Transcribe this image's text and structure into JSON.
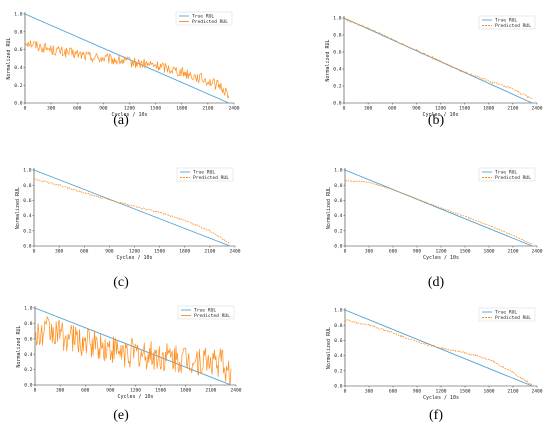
{
  "figure": {
    "colors": {
      "true_rul": "#4aa3d8",
      "predicted_rul": "#ff8c1a",
      "axis": "#333333"
    }
  },
  "chart_data": [
    {
      "panel": "(a)",
      "type": "line",
      "xlabel": "Cycles / 10s",
      "ylabel": "Normalized RUL",
      "xlim": [
        0,
        2400
      ],
      "ylim": [
        0,
        1
      ],
      "x_ticks": [
        "0",
        "300",
        "600",
        "900",
        "1200",
        "1500",
        "1800",
        "2100",
        "2400"
      ],
      "y_ticks": [
        "0.0",
        "0.2",
        "0.4",
        "0.6",
        "0.8",
        "1.0"
      ],
      "legend_position": "top-right",
      "pred_style": "solid",
      "series": [
        {
          "name": "True RUL",
          "x": [
            0,
            2340
          ],
          "values": [
            1.0,
            0.0
          ]
        },
        {
          "name": "Predicted RUL",
          "noise": 0.06,
          "x": [
            0,
            150,
            300,
            450,
            600,
            750,
            900,
            1050,
            1200,
            1350,
            1500,
            1650,
            1800,
            1950,
            2100,
            2250,
            2340
          ],
          "values": [
            0.7,
            0.64,
            0.6,
            0.57,
            0.55,
            0.52,
            0.5,
            0.48,
            0.46,
            0.44,
            0.42,
            0.39,
            0.35,
            0.3,
            0.25,
            0.18,
            0.1
          ]
        }
      ]
    },
    {
      "panel": "(b)",
      "type": "line",
      "xlabel": "Cycles / 10s",
      "ylabel": "Normalized RUL",
      "xlim": [
        0,
        2400
      ],
      "ylim": [
        0,
        1
      ],
      "x_ticks": [
        "0",
        "300",
        "600",
        "900",
        "1200",
        "1500",
        "1800",
        "2100",
        "2400"
      ],
      "y_ticks": [
        "0.0",
        "0.2",
        "0.4",
        "0.6",
        "0.8",
        "1.0"
      ],
      "legend_position": "top-right",
      "pred_style": "dashed",
      "series": [
        {
          "name": "True RUL",
          "x": [
            0,
            2340
          ],
          "values": [
            1.0,
            0.0
          ]
        },
        {
          "name": "Predicted RUL",
          "noise": 0.012,
          "x": [
            0,
            300,
            600,
            900,
            1200,
            1500,
            1800,
            2100,
            2340
          ],
          "values": [
            0.99,
            0.88,
            0.75,
            0.62,
            0.49,
            0.36,
            0.26,
            0.16,
            0.05
          ]
        }
      ]
    },
    {
      "panel": "(c)",
      "type": "line",
      "xlabel": "Cycles / 10s",
      "ylabel": "Normalized RUL",
      "xlim": [
        0,
        2400
      ],
      "ylim": [
        0,
        1
      ],
      "x_ticks": [
        "0",
        "300",
        "600",
        "900",
        "1200",
        "1500",
        "1800",
        "2100",
        "2400"
      ],
      "y_ticks": [
        "0.0",
        "0.2",
        "0.4",
        "0.6",
        "0.8",
        "1.0"
      ],
      "legend_position": "top-right",
      "pred_style": "dashed",
      "series": [
        {
          "name": "True RUL",
          "x": [
            0,
            2340
          ],
          "values": [
            1.0,
            0.0
          ]
        },
        {
          "name": "Predicted RUL",
          "noise": 0.01,
          "x": [
            0,
            300,
            600,
            900,
            1200,
            1500,
            1800,
            2100,
            2340
          ],
          "values": [
            0.88,
            0.8,
            0.7,
            0.61,
            0.52,
            0.44,
            0.34,
            0.2,
            0.03
          ]
        }
      ]
    },
    {
      "panel": "(d)",
      "type": "line",
      "xlabel": "Cycles / 10s",
      "ylabel": "Normalized RUL",
      "xlim": [
        0,
        2400
      ],
      "ylim": [
        0,
        1
      ],
      "x_ticks": [
        "0",
        "300",
        "600",
        "900",
        "1200",
        "1500",
        "1800",
        "2100",
        "2400"
      ],
      "y_ticks": [
        "0.0",
        "0.2",
        "0.4",
        "0.6",
        "0.8",
        "1.0"
      ],
      "legend_position": "top-right",
      "pred_style": "dashed",
      "series": [
        {
          "name": "True RUL",
          "x": [
            0,
            2340
          ],
          "values": [
            1.0,
            0.0
          ]
        },
        {
          "name": "Predicted RUL",
          "noise": 0.006,
          "x": [
            0,
            300,
            600,
            900,
            1200,
            1500,
            1800,
            2100,
            2340
          ],
          "values": [
            0.86,
            0.84,
            0.74,
            0.62,
            0.5,
            0.39,
            0.27,
            0.14,
            0.02
          ]
        }
      ]
    },
    {
      "panel": "(e)",
      "type": "line",
      "xlabel": "Cycles / 10s",
      "ylabel": "Normalized RUL",
      "xlim": [
        0,
        2400
      ],
      "ylim": [
        0,
        1
      ],
      "x_ticks": [
        "0",
        "300",
        "600",
        "900",
        "1200",
        "1500",
        "1800",
        "2100",
        "2400"
      ],
      "y_ticks": [
        "0.0",
        "0.2",
        "0.4",
        "0.6",
        "0.8",
        "1.0"
      ],
      "legend_position": "top-right",
      "pred_style": "solid",
      "series": [
        {
          "name": "True RUL",
          "x": [
            0,
            2340
          ],
          "values": [
            1.0,
            0.0
          ]
        },
        {
          "name": "Predicted RUL",
          "noise": 0.2,
          "x": [
            0,
            150,
            300,
            450,
            600,
            750,
            900,
            1050,
            1200,
            1350,
            1500,
            1650,
            1800,
            1950,
            2100,
            2250,
            2340
          ],
          "values": [
            0.6,
            0.72,
            0.65,
            0.6,
            0.56,
            0.52,
            0.46,
            0.42,
            0.4,
            0.38,
            0.36,
            0.34,
            0.33,
            0.32,
            0.3,
            0.28,
            0.05
          ]
        }
      ]
    },
    {
      "panel": "(f)",
      "type": "line",
      "xlabel": "Cycles / 10s",
      "ylabel": "Normalized RUL",
      "xlim": [
        0,
        2400
      ],
      "ylim": [
        0,
        1
      ],
      "x_ticks": [
        "0",
        "300",
        "600",
        "900",
        "1200",
        "1500",
        "1800",
        "2100",
        "2400"
      ],
      "y_ticks": [
        "0.0",
        "0.2",
        "0.4",
        "0.6",
        "0.8",
        "1.0"
      ],
      "legend_position": "top-right",
      "pred_style": "dashed",
      "series": [
        {
          "name": "True RUL",
          "x": [
            0,
            2340
          ],
          "values": [
            1.0,
            0.0
          ]
        },
        {
          "name": "Predicted RUL",
          "noise": 0.012,
          "x": [
            0,
            300,
            600,
            900,
            1200,
            1500,
            1800,
            2100,
            2340
          ],
          "values": [
            0.87,
            0.8,
            0.7,
            0.58,
            0.5,
            0.44,
            0.35,
            0.18,
            0.01
          ]
        }
      ]
    }
  ]
}
